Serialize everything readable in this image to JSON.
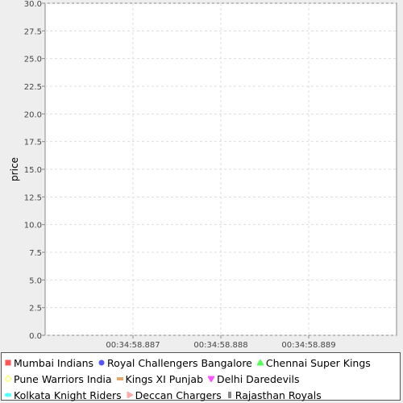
{
  "chart_data": {
    "type": "line",
    "title": "",
    "xlabel": "",
    "ylabel": "price",
    "ylim": [
      0,
      30
    ],
    "yticks": [
      "0.0",
      "2.5",
      "5.0",
      "7.5",
      "10.0",
      "12.5",
      "15.0",
      "17.5",
      "20.0",
      "22.5",
      "25.0",
      "27.5",
      "30.0"
    ],
    "xticks": [
      "00:34:58.887",
      "00:34:58.888",
      "00:34:58.889"
    ],
    "grid": true,
    "legend_position": "bottom",
    "series": [
      {
        "name": "Mumbai Indians",
        "color": "#ff5555",
        "marker": "square",
        "values": []
      },
      {
        "name": "Royal Challengers Bangalore",
        "color": "#5555ff",
        "marker": "circle",
        "values": []
      },
      {
        "name": "Chennai Super Kings",
        "color": "#55ff55",
        "marker": "triangle-up",
        "values": []
      },
      {
        "name": "Pune Warriors India",
        "color": "#ffff55",
        "marker": "diamond",
        "values": []
      },
      {
        "name": "Kings XI Punjab",
        "color": "#e6a86a",
        "marker": "rect-h",
        "values": []
      },
      {
        "name": "Delhi Daredevils",
        "color": "#ff55ff",
        "marker": "triangle-down",
        "values": []
      },
      {
        "name": "Kolkata Knight Riders",
        "color": "#55ffff",
        "marker": "ellipse-h",
        "values": []
      },
      {
        "name": "Deccan Chargers",
        "color": "#ffaaaa",
        "marker": "triangle-right",
        "values": []
      },
      {
        "name": "Rajasthan Royals",
        "color": "#888888",
        "marker": "rect-v",
        "values": []
      }
    ]
  }
}
